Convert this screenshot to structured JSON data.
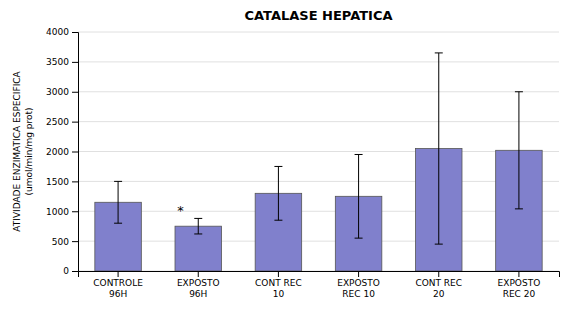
{
  "chart_data": {
    "type": "bar",
    "title": "CATALASE HEPATICA",
    "ylabel": "ATIVIDADE ENZIMATICA ESPECIFICA\n(umol/min/mg prot)",
    "categories": [
      "CONTROLE\n96H",
      "EXPOSTO\n96H",
      "CONT REC\n10",
      "EXPOSTO\nREC 10",
      "CONT REC\n20",
      "EXPOSTO\nREC 20"
    ],
    "values": [
      1150,
      750,
      1300,
      1250,
      2050,
      2020
    ],
    "errors": [
      350,
      130,
      450,
      700,
      1600,
      980
    ],
    "color": "#8080cc",
    "ylim": [
      0,
      4000
    ],
    "yticks": [
      0,
      500,
      1000,
      1500,
      2000,
      2500,
      3000,
      3500,
      4000
    ],
    "grid": true,
    "annotations": [
      {
        "text": "*",
        "category": "EXPOSTO\n96H"
      }
    ]
  }
}
